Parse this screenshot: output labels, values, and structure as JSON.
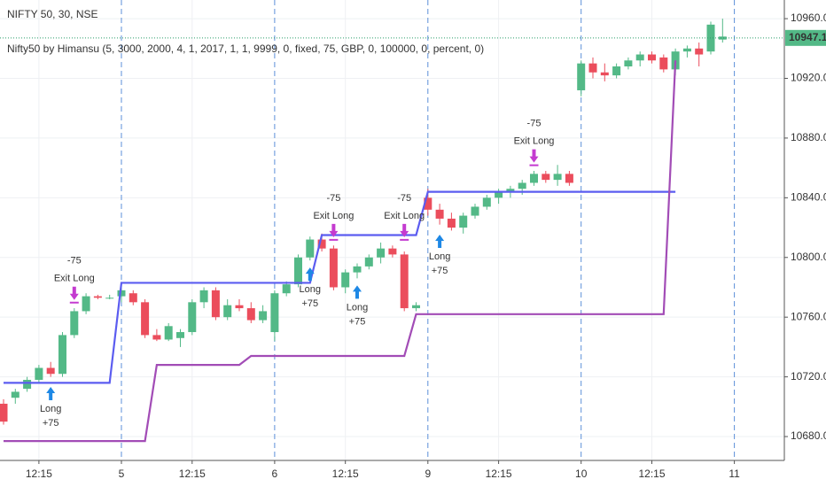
{
  "chart_data": {
    "type": "candlestick",
    "title": "NIFTY 50, 30, NSE",
    "subtitle": "Nifty50 by Himansu (5, 3000, 2000, 4, 1, 2017, 1, 1, 9999, 0, fixed, 75, GBP, 0, 100000, 0, percent, 0)",
    "x": [
      -10,
      -9,
      -8,
      -7,
      -6,
      -5,
      -4,
      -3,
      -2,
      -1,
      0,
      1,
      2,
      3,
      4,
      5,
      6,
      7,
      8,
      9,
      10,
      11,
      12,
      13,
      14,
      15,
      16,
      17,
      18,
      19,
      20,
      21,
      22,
      23,
      24,
      25,
      26,
      27,
      28,
      29,
      30,
      31,
      32,
      33,
      34,
      35,
      36,
      37,
      38,
      39,
      40,
      41,
      42,
      43,
      44,
      45,
      46,
      47,
      48,
      49,
      50,
      51
    ],
    "open": [
      10702,
      10706,
      10712,
      10718,
      10726,
      10722,
      10748,
      10764,
      10774,
      10773,
      10774,
      10776,
      10770,
      10748,
      10745,
      10746,
      10750,
      10770,
      10778,
      10760,
      10768,
      10766,
      10758,
      10750,
      10776,
      10782,
      10800,
      10812,
      10806,
      10780,
      10790,
      10794,
      10800,
      10806,
      10802,
      10766,
      10840,
      10832,
      10826,
      10820,
      10828,
      10834,
      10840,
      10844,
      10846,
      10850,
      10856,
      10852,
      10856,
      10912,
      10930,
      10924,
      10922,
      10928,
      10932,
      10936,
      10934,
      10926,
      10938,
      10940,
      10938,
      10946
    ],
    "high": [
      10705,
      10712,
      10720,
      10728,
      10730,
      10750,
      10766,
      10776,
      10775,
      10775,
      10779,
      10778,
      10772,
      10752,
      10756,
      10752,
      10772,
      10780,
      10780,
      10772,
      10772,
      10770,
      10768,
      10778,
      10784,
      10802,
      10814,
      10816,
      10808,
      10792,
      10796,
      10802,
      10810,
      10808,
      10804,
      10770,
      10846,
      10836,
      10830,
      10830,
      10836,
      10842,
      10846,
      10848,
      10852,
      10858,
      10858,
      10862,
      10858,
      10932,
      10934,
      10930,
      10930,
      10934,
      10938,
      10938,
      10936,
      10940,
      10942,
      10944,
      10958,
      10960
    ],
    "low": [
      10688,
      10702,
      10710,
      10716,
      10720,
      10720,
      10746,
      10762,
      10772,
      10772,
      10770,
      10768,
      10746,
      10744,
      10744,
      10740,
      10748,
      10766,
      10758,
      10758,
      10764,
      10756,
      10756,
      10744,
      10774,
      10780,
      10798,
      10804,
      10778,
      10776,
      10786,
      10792,
      10796,
      10800,
      10764,
      10764,
      10828,
      10822,
      10818,
      10816,
      10826,
      10832,
      10836,
      10840,
      10842,
      10848,
      10850,
      10848,
      10848,
      10908,
      10920,
      10918,
      10920,
      10926,
      10928,
      10930,
      10924,
      10922,
      10934,
      10928,
      10936,
      10944
    ],
    "close": [
      10690,
      10710,
      10718,
      10726,
      10722,
      10748,
      10764,
      10774,
      10773,
      10773,
      10778,
      10770,
      10748,
      10745,
      10754,
      10750,
      10770,
      10778,
      10760,
      10768,
      10766,
      10758,
      10764,
      10776,
      10782,
      10800,
      10812,
      10806,
      10780,
      10790,
      10794,
      10800,
      10806,
      10802,
      10766,
      10768,
      10832,
      10826,
      10820,
      10828,
      10834,
      10840,
      10844,
      10846,
      10850,
      10856,
      10852,
      10856,
      10850,
      10930,
      10924,
      10922,
      10928,
      10932,
      10936,
      10932,
      10926,
      10938,
      10940,
      10936,
      10956,
      10948
    ],
    "up_color": "#53b987",
    "down_color": "#eb4d5c",
    "lines": [
      {
        "color": "#5b5cf0",
        "values": [
          10716,
          10716,
          10716,
          10716,
          10716,
          10716,
          10716,
          10716,
          10716,
          10716,
          10783,
          10783,
          10783,
          10783,
          10783,
          10783,
          10783,
          10783,
          10783,
          10783,
          10783,
          10783,
          10783,
          10783,
          10783,
          10783,
          10783,
          10815,
          10815,
          10815,
          10815,
          10815,
          10815,
          10815,
          10815,
          10815,
          10844,
          10844,
          10844,
          10844,
          10844,
          10844,
          10844,
          10844,
          10844,
          10844,
          10844,
          10844,
          10844,
          10844,
          10844,
          10844,
          10844,
          10844,
          10844,
          10844,
          10844,
          10844,
          null,
          null,
          null,
          null
        ]
      },
      {
        "color": "#a24cb6",
        "values": [
          10677,
          10677,
          10677,
          10677,
          10677,
          10677,
          10677,
          10677,
          10677,
          10677,
          10677,
          10677,
          10677,
          10728,
          10728,
          10728,
          10728,
          10728,
          10728,
          10728,
          10728,
          10734,
          10734,
          10734,
          10734,
          10734,
          10734,
          10734,
          10734,
          10734,
          10734,
          10734,
          10734,
          10734,
          10734,
          10762,
          10762,
          10762,
          10762,
          10762,
          10762,
          10762,
          10762,
          10762,
          10762,
          10762,
          10762,
          10762,
          10762,
          10762,
          10762,
          10762,
          10762,
          10762,
          10762,
          10762,
          10762,
          10932,
          null,
          null,
          null,
          null
        ]
      }
    ],
    "signals": [
      {
        "bar": -6,
        "price": 10718,
        "label": "Long",
        "qty": "+75"
      },
      {
        "bar": -4,
        "price": 10768,
        "label": "Exit Long",
        "qty": "-75"
      },
      {
        "bar": 16,
        "price": 10798,
        "label": "Long",
        "qty": "+75"
      },
      {
        "bar": 18,
        "price": 10810,
        "label": "Exit Long",
        "qty": "-75"
      },
      {
        "bar": 20,
        "price": 10786,
        "label": "Long",
        "qty": "+75"
      },
      {
        "bar": 24,
        "price": 10810,
        "label": "Exit Long",
        "qty": "-75"
      },
      {
        "bar": 27,
        "price": 10820,
        "label": "Long",
        "qty": "+75"
      },
      {
        "bar": 35,
        "price": 10860,
        "label": "Exit Long",
        "qty": "-75"
      }
    ],
    "last_price": {
      "value": 10947.1,
      "label": "10947.10"
    },
    "xlim": [
      -10.3,
      56.24
    ],
    "ylim": [
      10664,
      10972.5
    ],
    "xticks": [
      {
        "value": -7,
        "label": "12:15"
      },
      {
        "value": 0,
        "label": "5"
      },
      {
        "value": 6,
        "label": "12:15"
      },
      {
        "value": 13,
        "label": "6"
      },
      {
        "value": 19,
        "label": "12:15"
      },
      {
        "value": 26,
        "label": "9"
      },
      {
        "value": 32,
        "label": "12:15"
      },
      {
        "value": 39,
        "label": "10"
      },
      {
        "value": 45,
        "label": "12:15"
      },
      {
        "value": 52,
        "label": "11"
      }
    ],
    "yticks": [
      {
        "value": 10680,
        "label": "10680.00"
      },
      {
        "value": 10720,
        "label": "10720.00"
      },
      {
        "value": 10760,
        "label": "10760.00"
      },
      {
        "value": 10800,
        "label": "10800.00"
      },
      {
        "value": 10840,
        "label": "10840.00"
      },
      {
        "value": 10880,
        "label": "10880.00"
      },
      {
        "value": 10920,
        "label": "10920.00"
      },
      {
        "value": 10960,
        "label": "10960.00"
      }
    ],
    "grid": true
  }
}
